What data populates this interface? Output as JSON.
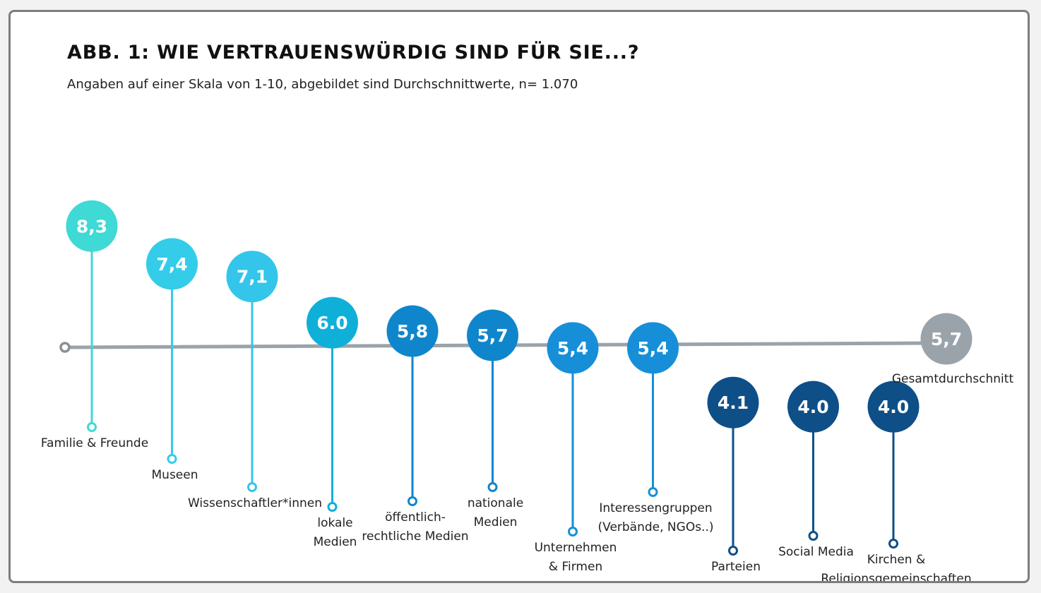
{
  "title": "ABB. 1: WIE VERTRAUENSWÜRDIG SIND FÜR SIE...?",
  "subtitle": "Angaben auf einer Skala von 1-10, abgebildet sind Durchschnittwerte, n= 1.070",
  "chart_data": {
    "type": "scatter",
    "title": "ABB. 1: WIE VERTRAUENSWÜRDIG SIND FÜR SIE...?",
    "subtitle": "Angaben auf einer Skala von 1-10, abgebildet sind Durchschnittwerte, n= 1.070",
    "scale": [
      1,
      10
    ],
    "reference_line": {
      "label": "Gesamtdurchschnitt",
      "value": 5.7,
      "value_label": "5,7",
      "color": "#9ba3aa"
    },
    "categories": [
      {
        "label_lines": [
          "Familie & Freunde"
        ],
        "value": 8.3,
        "value_label": "8,3",
        "color": "#3fd9d6"
      },
      {
        "label_lines": [
          "Museen"
        ],
        "value": 7.4,
        "value_label": "7,4",
        "color": "#33cde9"
      },
      {
        "label_lines": [
          "Wissenschaftler*innen"
        ],
        "value": 7.1,
        "value_label": "7,1",
        "color": "#33c6ea"
      },
      {
        "label_lines": [
          "lokale",
          "Medien"
        ],
        "value": 6.0,
        "value_label": "6.0",
        "color": "#0fb0d8"
      },
      {
        "label_lines": [
          "öffentlich-",
          "rechtliche Medien"
        ],
        "value": 5.8,
        "value_label": "5,8",
        "color": "#0f86cc"
      },
      {
        "label_lines": [
          "nationale",
          "Medien"
        ],
        "value": 5.7,
        "value_label": "5,7",
        "color": "#0f86cc"
      },
      {
        "label_lines": [
          "Unternehmen",
          "& Firmen"
        ],
        "value": 5.4,
        "value_label": "5,4",
        "color": "#168fd8"
      },
      {
        "label_lines": [
          "Interessengruppen",
          "(Verbände, NGOs..)"
        ],
        "value": 5.4,
        "value_label": "5,4",
        "color": "#168fd8"
      },
      {
        "label_lines": [
          "Parteien"
        ],
        "value": 4.1,
        "value_label": "4.1",
        "color": "#0e4f88"
      },
      {
        "label_lines": [
          "Social Media"
        ],
        "value": 4.0,
        "value_label": "4.0",
        "color": "#0e4f88"
      },
      {
        "label_lines": [
          "Kirchen &",
          "Religionsgemeinschaften"
        ],
        "value": 4.0,
        "value_label": "4.0",
        "color": "#0e4f88"
      }
    ]
  }
}
